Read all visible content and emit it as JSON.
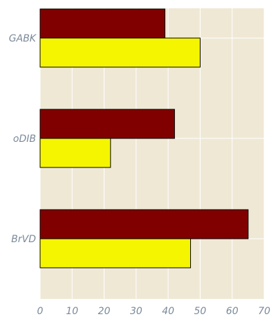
{
  "chart_data": {
    "type": "bar",
    "orientation": "horizontal",
    "categories": [
      "GABK",
      "oDIB",
      "BrVD"
    ],
    "series": [
      {
        "color": "#800000",
        "values": [
          39,
          42,
          65
        ]
      },
      {
        "color": "#f5f500",
        "values": [
          50,
          22,
          47
        ]
      }
    ],
    "xlim": [
      0,
      70
    ],
    "xticks": [
      0,
      10,
      20,
      30,
      40,
      50,
      60,
      70
    ],
    "grid": true,
    "legend": "none",
    "colors": {
      "plot_background": "#efe8d5",
      "grid": "#ffffff",
      "tick_label": "#7a8a99",
      "bar_edge": "#000000"
    }
  }
}
